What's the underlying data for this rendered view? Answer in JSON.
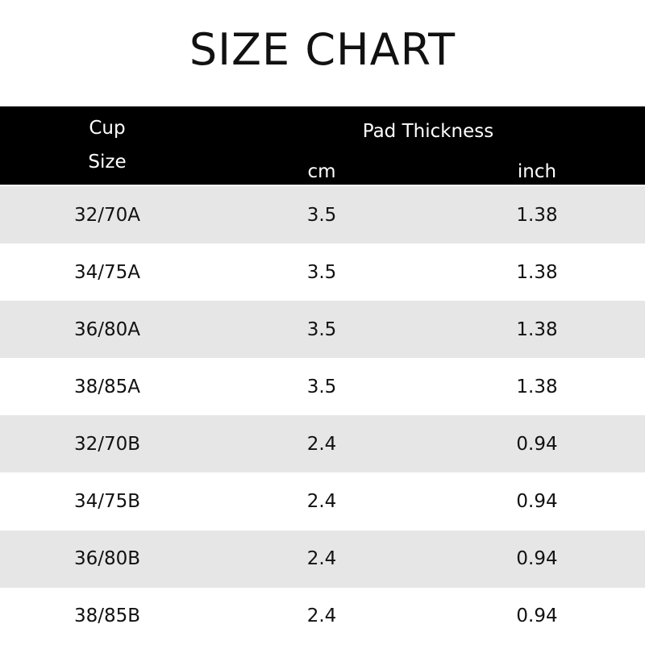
{
  "title": "SIZE CHART",
  "header": {
    "cup_line1": "Cup",
    "cup_line2": "Size",
    "pad_thickness": "Pad Thickness",
    "cm": "cm",
    "inch": "inch"
  },
  "colors": {
    "header_bg": "#000000",
    "stripe": "#e6e6e6"
  },
  "rows": [
    {
      "size": "32/70A",
      "cm": "3.5",
      "inch": "1.38"
    },
    {
      "size": "34/75A",
      "cm": "3.5",
      "inch": "1.38"
    },
    {
      "size": "36/80A",
      "cm": "3.5",
      "inch": "1.38"
    },
    {
      "size": "38/85A",
      "cm": "3.5",
      "inch": "1.38"
    },
    {
      "size": "32/70B",
      "cm": "2.4",
      "inch": "0.94"
    },
    {
      "size": "34/75B",
      "cm": "2.4",
      "inch": "0.94"
    },
    {
      "size": "36/80B",
      "cm": "2.4",
      "inch": "0.94"
    },
    {
      "size": "38/85B",
      "cm": "2.4",
      "inch": "0.94"
    }
  ]
}
